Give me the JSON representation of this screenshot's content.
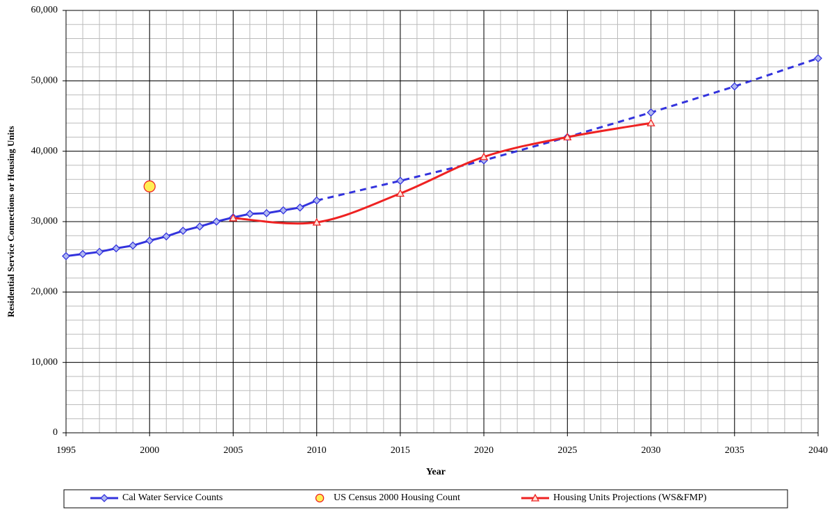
{
  "chart_data": {
    "type": "line",
    "xlabel": "Year",
    "ylabel": "Residential Service Connections or Housing Units",
    "xlim": [
      1995,
      2040
    ],
    "xticks": [
      1995,
      2000,
      2005,
      2010,
      2015,
      2020,
      2025,
      2030,
      2035,
      2040
    ],
    "ylim": [
      0,
      60000
    ],
    "yticks": [
      0,
      {
        "value": 10000,
        "label": "10,000"
      },
      {
        "value": 20000,
        "label": "20,000"
      },
      {
        "value": 30000,
        "label": "30,000"
      },
      {
        "value": 40000,
        "label": "40,000"
      },
      {
        "value": 50000,
        "label": "50,000"
      },
      {
        "value": 60000,
        "label": "60,000"
      }
    ],
    "grid": true,
    "minor_x_step": 1,
    "minor_y_step": 2000,
    "legend": "bottom",
    "series": [
      {
        "name": "Cal Water Service Counts",
        "color": "#3333dd",
        "marker": "diamond",
        "dashed_after": 2010,
        "x": [
          1995,
          1996,
          1997,
          1998,
          1999,
          2000,
          2001,
          2002,
          2003,
          2004,
          2005,
          2006,
          2007,
          2008,
          2009,
          2010,
          2015,
          2020,
          2025,
          2030,
          2035,
          2040
        ],
        "values": [
          25100,
          25400,
          25700,
          26200,
          26600,
          27300,
          27900,
          28700,
          29300,
          30000,
          30600,
          31100,
          31200,
          31600,
          32000,
          33000,
          35800,
          38700,
          42000,
          45500,
          49200,
          53200
        ]
      },
      {
        "name": "US Census 2000 Housing Count",
        "color": "#ffee55",
        "marker": "circle",
        "x": [
          2000
        ],
        "values": [
          35000
        ]
      },
      {
        "name": "Housing Units Projections (WS&FMP)",
        "color": "#ee2222",
        "marker": "triangle",
        "smooth": true,
        "x": [
          2005,
          2010,
          2015,
          2020,
          2025,
          2030
        ],
        "values": [
          30500,
          29900,
          34000,
          39200,
          42000,
          44000
        ]
      }
    ]
  }
}
